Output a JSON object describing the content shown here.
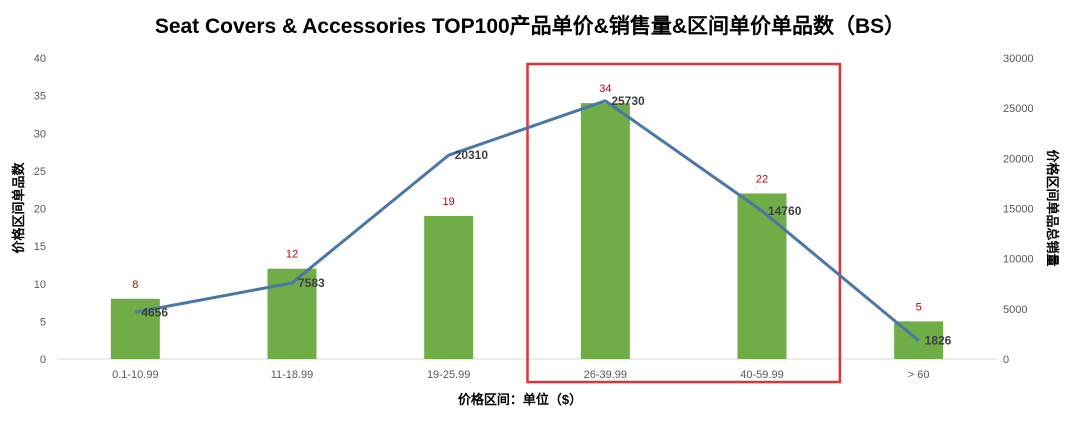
{
  "chart_data": {
    "type": "bar",
    "title": "Seat Covers & Accessories TOP100产品单价&销售量&区间单价单品数（BS）",
    "xlabel": "价格区间：单位（$）",
    "ylabel": "价格区间单品数",
    "y2label": "价格区间单品总销量",
    "categories": [
      "0.1-10.99",
      "11-18.99",
      "19-25.99",
      "26-39.99",
      "40-59.99",
      "> 60"
    ],
    "ylim": [
      0,
      40
    ],
    "yticks": [
      0,
      5,
      10,
      15,
      20,
      25,
      30,
      35,
      40
    ],
    "y2lim": [
      0,
      30000
    ],
    "y2ticks": [
      0,
      5000,
      10000,
      15000,
      20000,
      25000,
      30000
    ],
    "series": [
      {
        "type": "bar",
        "axis": "left",
        "values": [
          8,
          12,
          19,
          34,
          22,
          5
        ]
      },
      {
        "type": "line",
        "axis": "right",
        "values": [
          4656,
          7583,
          20310,
          25730,
          14760,
          1826
        ]
      }
    ],
    "grid": false,
    "legend": "none",
    "highlight": {
      "from_category": "26-39.99",
      "to_category": "40-59.99"
    },
    "colors": {
      "bar": "#70ad47",
      "line": "#4a76a8",
      "bar_label": "#c00000",
      "highlight": "#d9363e"
    }
  }
}
